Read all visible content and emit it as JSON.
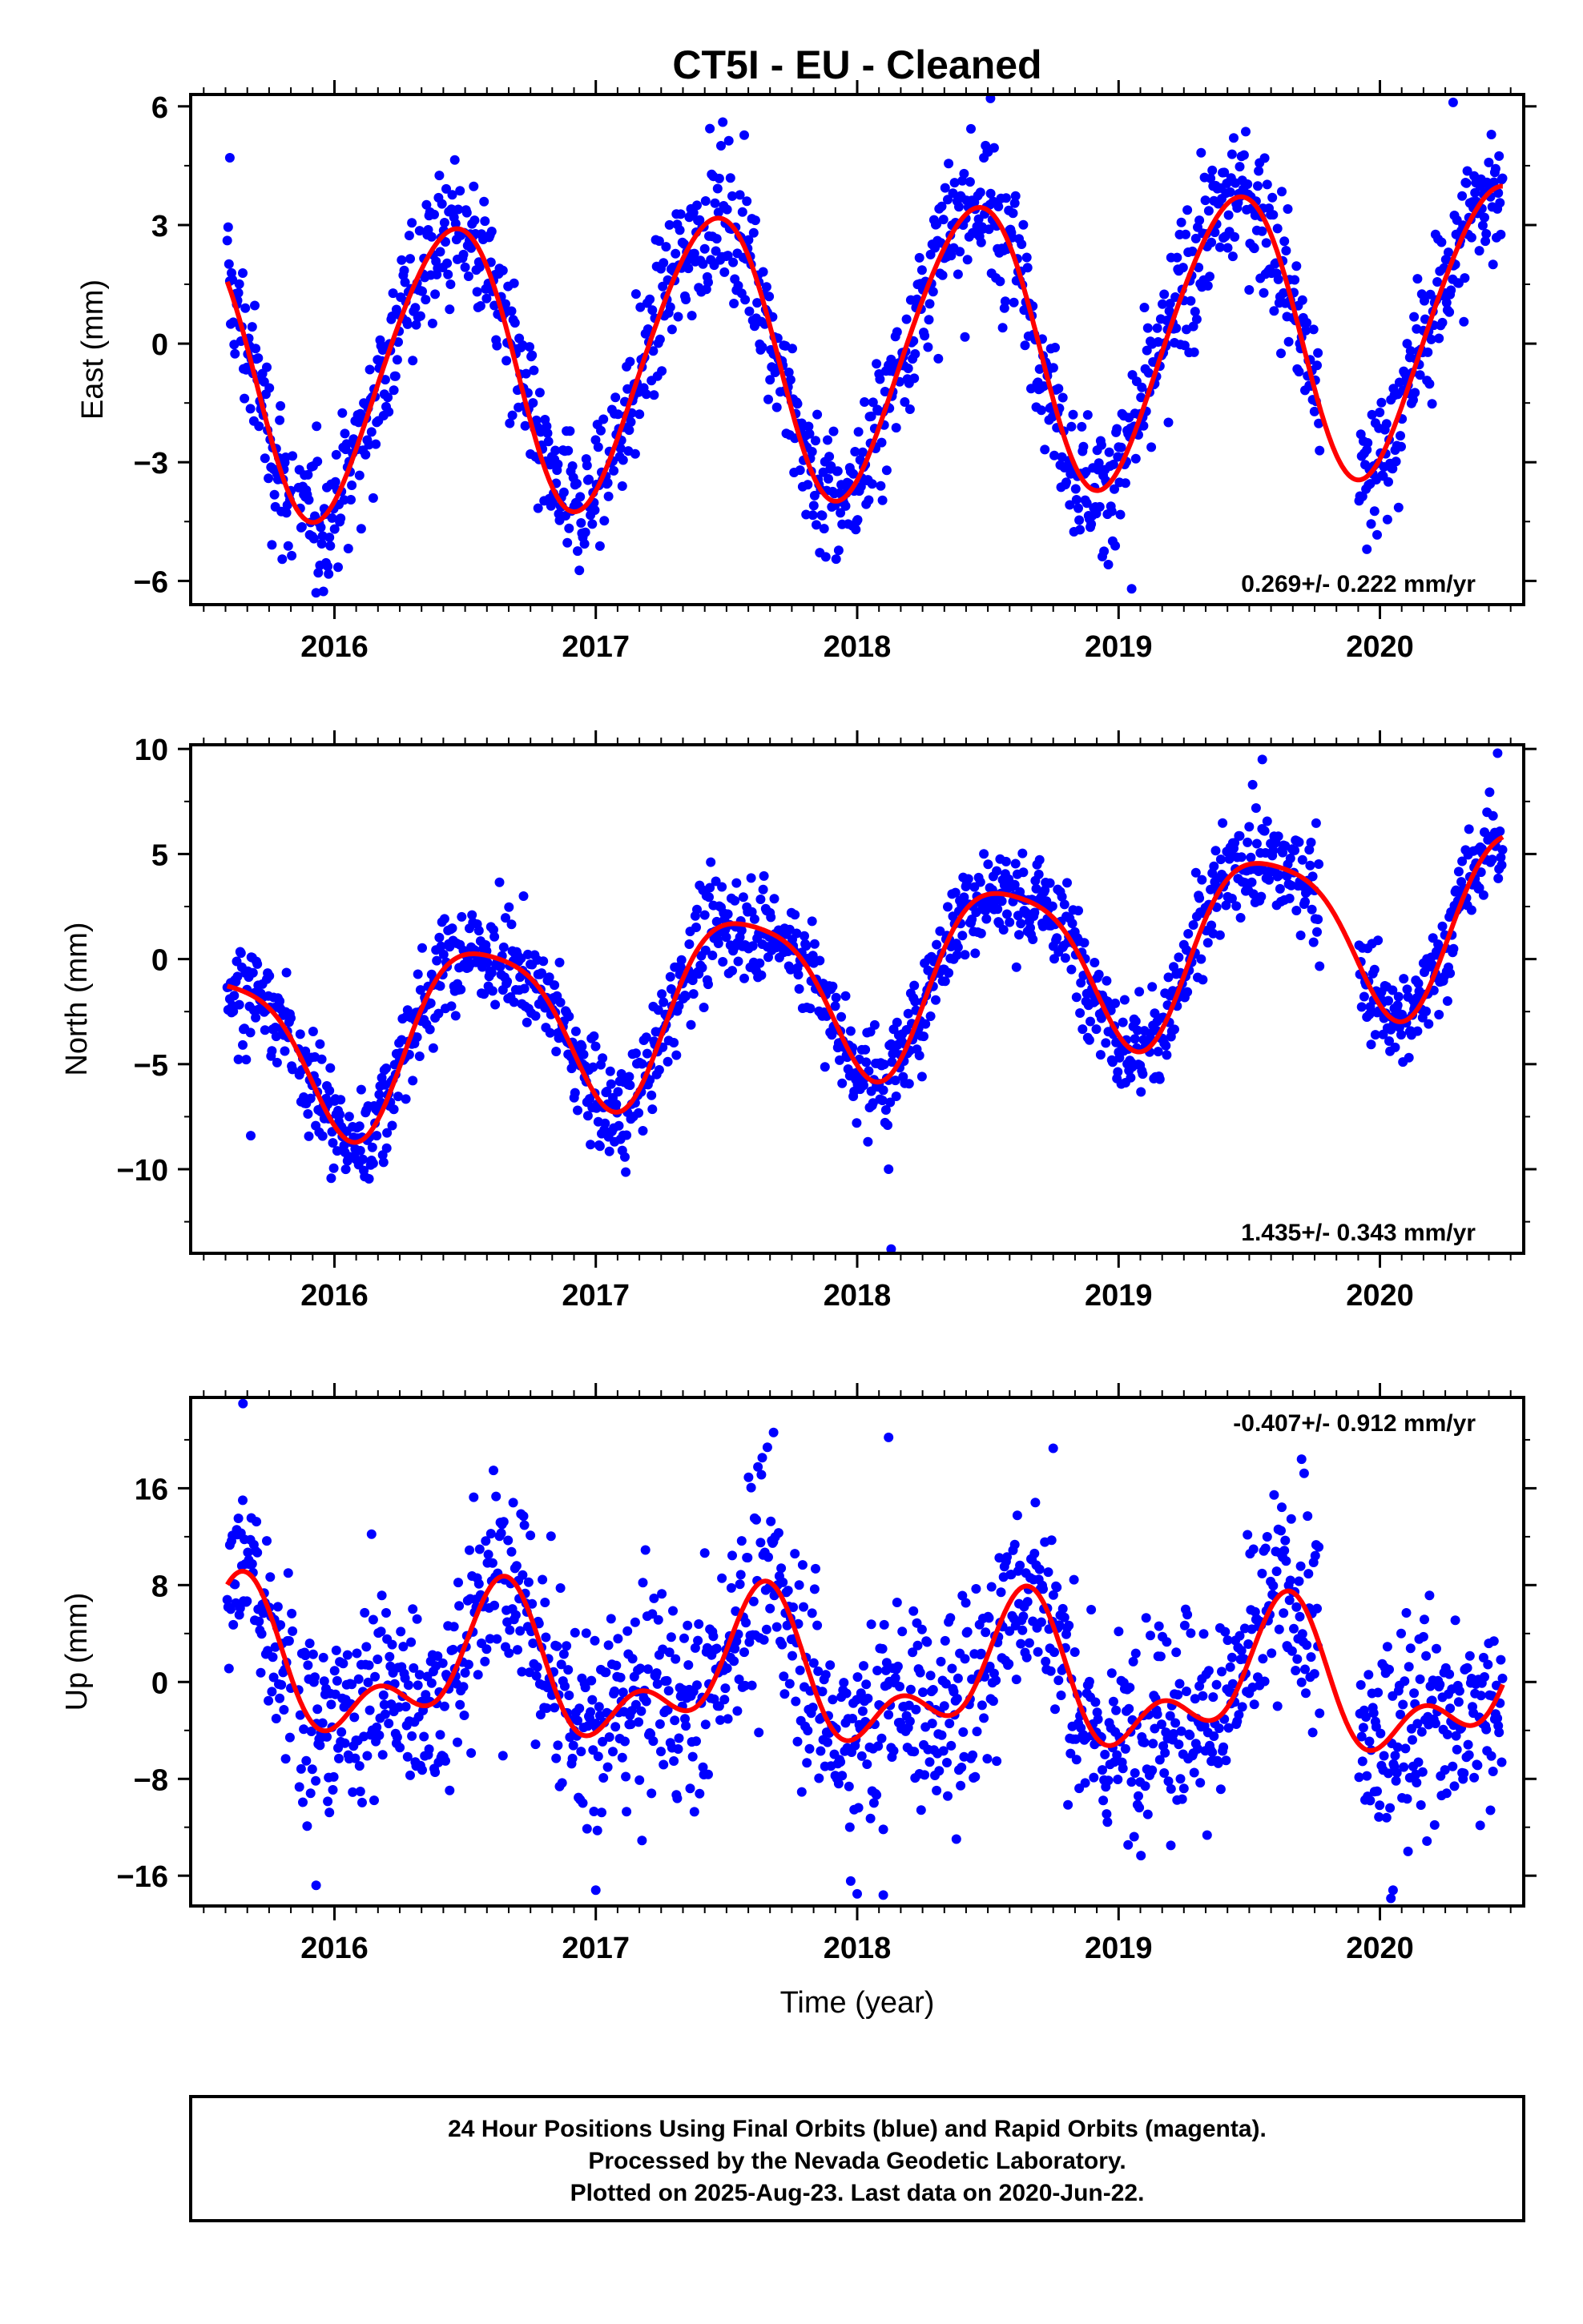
{
  "title": "CT5I  - EU - Cleaned",
  "xlabel": "Time (year)",
  "footer": [
    "24 Hour Positions Using Final Orbits (blue) and Rapid Orbits (magenta).",
    "Processed by the Nevada Geodetic Laboratory.",
    "Plotted on 2025-Aug-23. Last data on 2020-Jun-22."
  ],
  "colors": {
    "final_orbits": "#0000ff",
    "model": "#ff0000",
    "axes": "#000000"
  },
  "chart_data": [
    {
      "type": "scatter",
      "component": "east",
      "ylabel": "East (mm)",
      "rate_text": "0.269+/- 0.222 mm/yr",
      "rate_position": "bottom-right",
      "xlim": [
        2015.45,
        2020.55
      ],
      "ylim": [
        -6.6,
        6.3
      ],
      "xticks": [
        2016,
        2017,
        2018,
        2019,
        2020
      ],
      "yticks": [
        -6,
        -3,
        0,
        3,
        6
      ],
      "ytick_labels": [
        "−6",
        "−3",
        "0",
        "3",
        "6"
      ],
      "grid": false,
      "model": {
        "offset": -0.2,
        "trend_mm_per_yr": 0.269,
        "annual_amp": 3.6,
        "annual_peak": 0.44,
        "semiannual_amp": 0.3,
        "semiannual_peak": 0.1,
        "ref_epoch": 2018.0
      },
      "series": [
        {
          "name": "",
          "kind": "daily positions",
          "start": 2015.59,
          "end": 2020.47,
          "step_days": 1.2,
          "scatter_sigma": 0.9,
          "outliers": [
            [
              2015.6,
              4.7
            ],
            [
              2018.51,
              6.2
            ],
            [
              2020.28,
              6.1
            ],
            [
              2015.93,
              -6.3
            ],
            [
              2019.05,
              -6.2
            ],
            [
              2019.95,
              -5.2
            ]
          ]
        },
        {
          "name": "",
          "kind": "model fit"
        }
      ]
    },
    {
      "type": "scatter",
      "component": "north",
      "ylabel": "North (mm)",
      "rate_text": "1.435+/- 0.343 mm/yr",
      "rate_position": "bottom-right",
      "xlim": [
        2015.45,
        2020.55
      ],
      "ylim": [
        -14.0,
        10.2
      ],
      "xticks": [
        2016,
        2017,
        2018,
        2019,
        2020
      ],
      "yticks": [
        -10,
        -5,
        0,
        5,
        10
      ],
      "ytick_labels": [
        "−10",
        "−5",
        "0",
        "5",
        "10"
      ],
      "grid": false,
      "model": {
        "offset": -1.1,
        "trend_mm_per_yr": 1.435,
        "annual_amp": 4.1,
        "annual_peak": 0.57,
        "semiannual_amp": 0.8,
        "semiannual_peak": 0.35,
        "ref_epoch": 2018.0
      },
      "series": [
        {
          "name": "",
          "kind": "daily positions",
          "start": 2015.59,
          "end": 2020.47,
          "step_days": 1.2,
          "scatter_sigma": 1.2,
          "outliers": [
            [
              2015.68,
              -8.4
            ],
            [
              2018.12,
              -10.0
            ],
            [
              2018.13,
              -13.8
            ],
            [
              2016.2,
              -9.0
            ],
            [
              2019.55,
              9.5
            ],
            [
              2020.45,
              9.8
            ]
          ]
        },
        {
          "name": "",
          "kind": "model fit"
        }
      ]
    },
    {
      "type": "scatter",
      "component": "up",
      "ylabel": "Up (mm)",
      "rate_text": "-0.407+/- 0.912 mm/yr",
      "rate_position": "top-right",
      "xlim": [
        2015.45,
        2020.55
      ],
      "ylim": [
        -18.5,
        23.5
      ],
      "xticks": [
        2016,
        2017,
        2018,
        2019,
        2020
      ],
      "yticks": [
        -16,
        -8,
        0,
        8,
        16
      ],
      "ytick_labels": [
        "−16",
        "−8",
        "0",
        "8",
        "16"
      ],
      "grid": false,
      "model": {
        "offset": 0.3,
        "trend_mm_per_yr": -0.407,
        "annual_amp": 4.8,
        "annual_peak": 0.62,
        "semiannual_amp": 3.2,
        "semiannual_peak": 0.66,
        "ref_epoch": 2018.0
      },
      "series": [
        {
          "name": "",
          "kind": "daily positions",
          "start": 2015.59,
          "end": 2020.47,
          "step_days": 1.2,
          "scatter_sigma": 4.2,
          "outliers": [
            [
              2015.65,
              23.0
            ],
            [
              2017.68,
              20.6
            ],
            [
              2018.12,
              20.2
            ],
            [
              2018.75,
              19.3
            ],
            [
              2019.7,
              18.4
            ],
            [
              2015.93,
              -16.8
            ],
            [
              2017.0,
              -17.2
            ],
            [
              2018.0,
              -17.5
            ],
            [
              2018.1,
              -17.6
            ],
            [
              2020.05,
              -17.2
            ],
            [
              2019.2,
              -13.5
            ]
          ]
        },
        {
          "name": "",
          "kind": "model fit"
        }
      ]
    }
  ]
}
